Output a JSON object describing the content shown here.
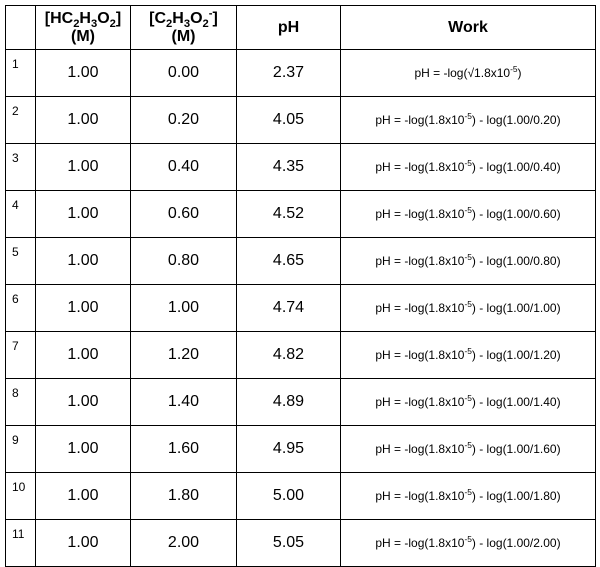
{
  "headers": {
    "trial": "",
    "acid_line1_a": "[HC",
    "acid_sub1": "2",
    "acid_line1_b": "H",
    "acid_sub2": "3",
    "acid_line1_c": "O",
    "acid_sub3": "2",
    "acid_line1_d": "]",
    "acid_line2": "(M)",
    "base_line1_a": "[C",
    "base_sub1": "2",
    "base_line1_b": "H",
    "base_sub2": "3",
    "base_line1_c": "O",
    "base_sub3": "2",
    "base_sup": "-",
    "base_line1_d": "]",
    "base_line2": "(M)",
    "ph": "pH",
    "work": "Work"
  },
  "rows": [
    {
      "trial": "1",
      "acid": "1.00",
      "base": "0.00",
      "ph": "2.37",
      "work_a": "pH = -log(√1.8x10",
      "work_sup1": "-5",
      "work_b": ")",
      "work_c": ""
    },
    {
      "trial": "2",
      "acid": "1.00",
      "base": "0.20",
      "ph": "4.05",
      "work_a": "pH = -log(1.8x10",
      "work_sup1": "-5",
      "work_b": ") - log(1.00/0.20)",
      "work_c": ""
    },
    {
      "trial": "3",
      "acid": "1.00",
      "base": "0.40",
      "ph": "4.35",
      "work_a": "pH = -log(1.8x10",
      "work_sup1": "-5",
      "work_b": ") - log(1.00/0.40)",
      "work_c": ""
    },
    {
      "trial": "4",
      "acid": "1.00",
      "base": "0.60",
      "ph": "4.52",
      "work_a": "pH = -log(1.8x10",
      "work_sup1": "-5",
      "work_b": ") - log(1.00/0.60)",
      "work_c": ""
    },
    {
      "trial": "5",
      "acid": "1.00",
      "base": "0.80",
      "ph": "4.65",
      "work_a": "pH = -log(1.8x10",
      "work_sup1": "-5",
      "work_b": ") - log(1.00/0.80)",
      "work_c": ""
    },
    {
      "trial": "6",
      "acid": "1.00",
      "base": "1.00",
      "ph": "4.74",
      "work_a": "pH = -log(1.8x10",
      "work_sup1": "-5",
      "work_b": ") - log(1.00/1.00)",
      "work_c": ""
    },
    {
      "trial": "7",
      "acid": "1.00",
      "base": "1.20",
      "ph": "4.82",
      "work_a": "pH = -log(1.8x10",
      "work_sup1": "-5",
      "work_b": ") - log(1.00/1.20)",
      "work_c": ""
    },
    {
      "trial": "8",
      "acid": "1.00",
      "base": "1.40",
      "ph": "4.89",
      "work_a": "pH = -log(1.8x10",
      "work_sup1": "-5",
      "work_b": ") - log(1.00/1.40)",
      "work_c": ""
    },
    {
      "trial": "9",
      "acid": "1.00",
      "base": "1.60",
      "ph": "4.95",
      "work_a": "pH = -log(1.8x10",
      "work_sup1": "-5",
      "work_b": ") - log(1.00/1.60)",
      "work_c": ""
    },
    {
      "trial": "10",
      "acid": "1.00",
      "base": "1.80",
      "ph": "5.00",
      "work_a": "pH = -log(1.8x10",
      "work_sup1": "-5",
      "work_b": ") - log(1.00/1.80)",
      "work_c": ""
    },
    {
      "trial": "11",
      "acid": "1.00",
      "base": "2.00",
      "ph": "5.05",
      "work_a": "pH = -log(1.8x10",
      "work_sup1": "-5",
      "work_b": ") - log(1.00/2.00)",
      "work_c": ""
    }
  ]
}
